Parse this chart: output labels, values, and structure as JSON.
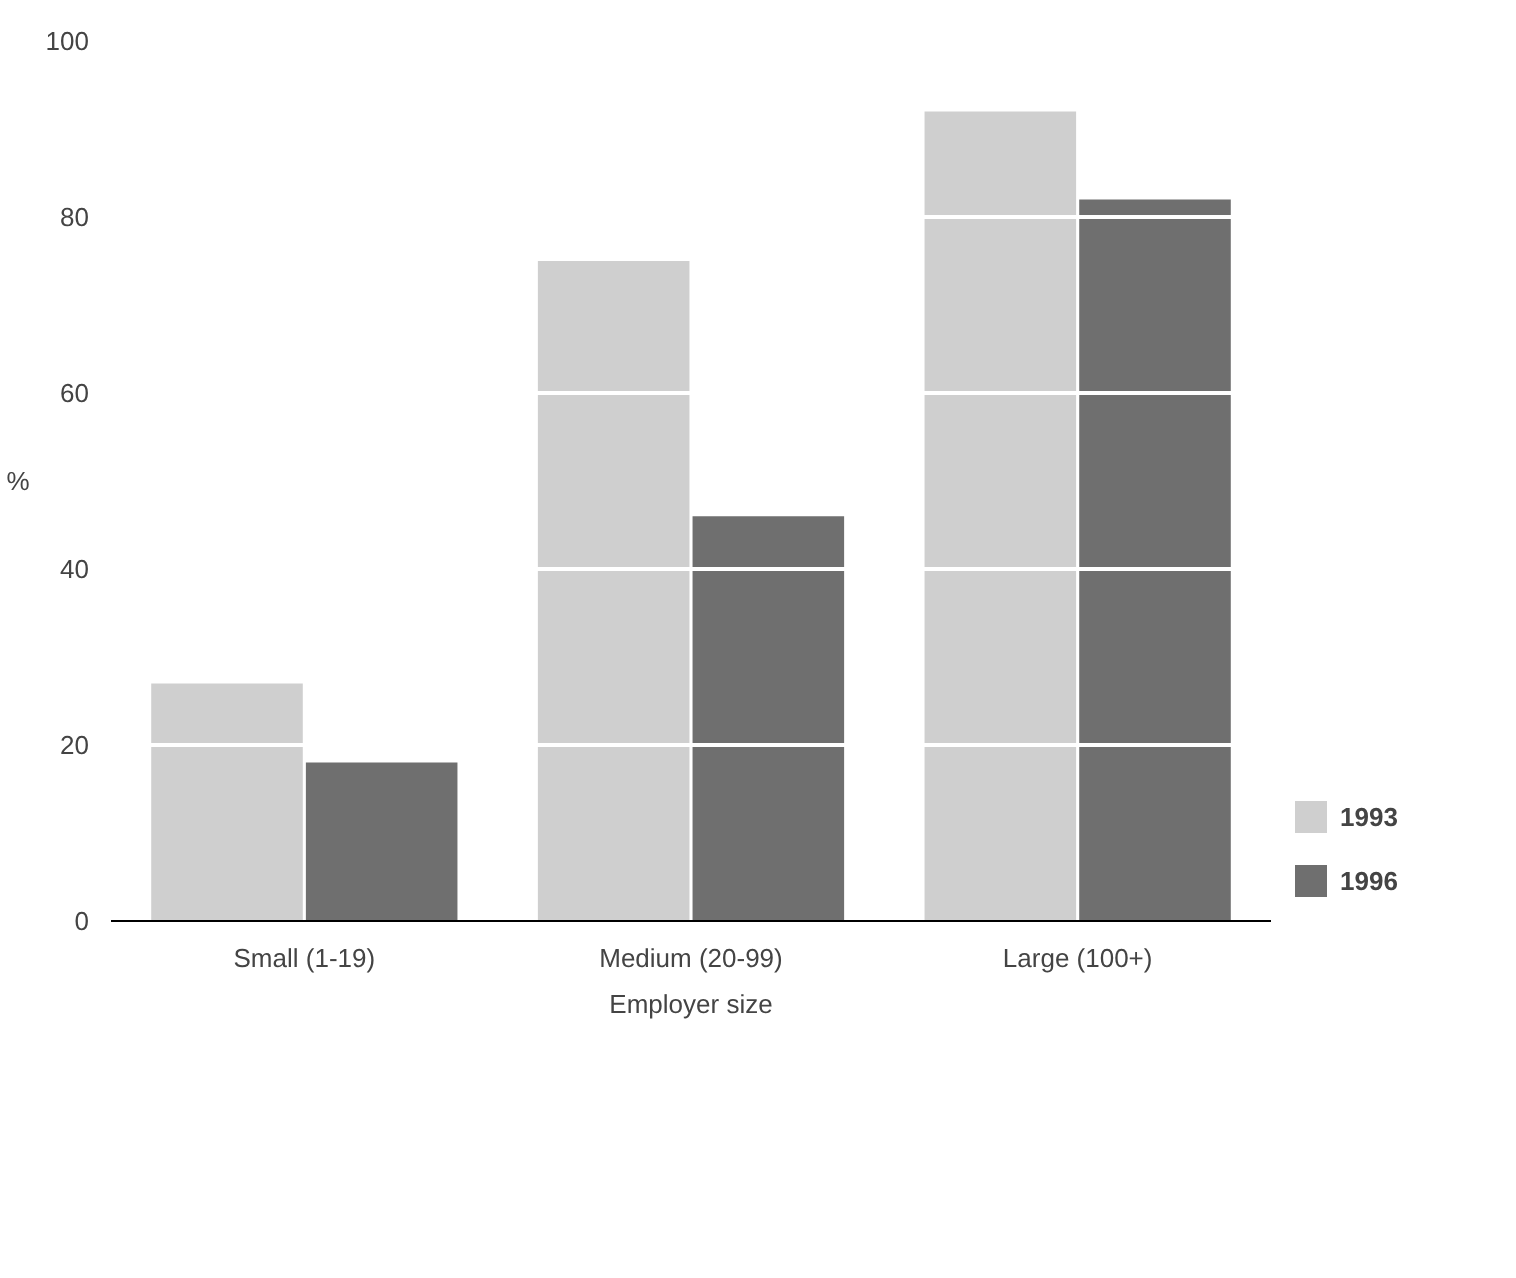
{
  "chart_data": {
    "type": "bar",
    "ylabel": "%",
    "xlabel": "Employer size",
    "categories": [
      "Small (1-19)",
      "Medium (20-99)",
      "Large (100+)"
    ],
    "series": [
      {
        "name": "1993",
        "color": "#cfcfcf",
        "values": [
          27,
          75,
          92
        ]
      },
      {
        "name": "1996",
        "color": "#6f6f6f",
        "values": [
          18,
          46,
          82
        ]
      }
    ],
    "ylim": [
      0,
      100
    ],
    "yticks": [
      0,
      20,
      40,
      60,
      80,
      100
    ],
    "grid": "y",
    "legend": "bottom right"
  }
}
